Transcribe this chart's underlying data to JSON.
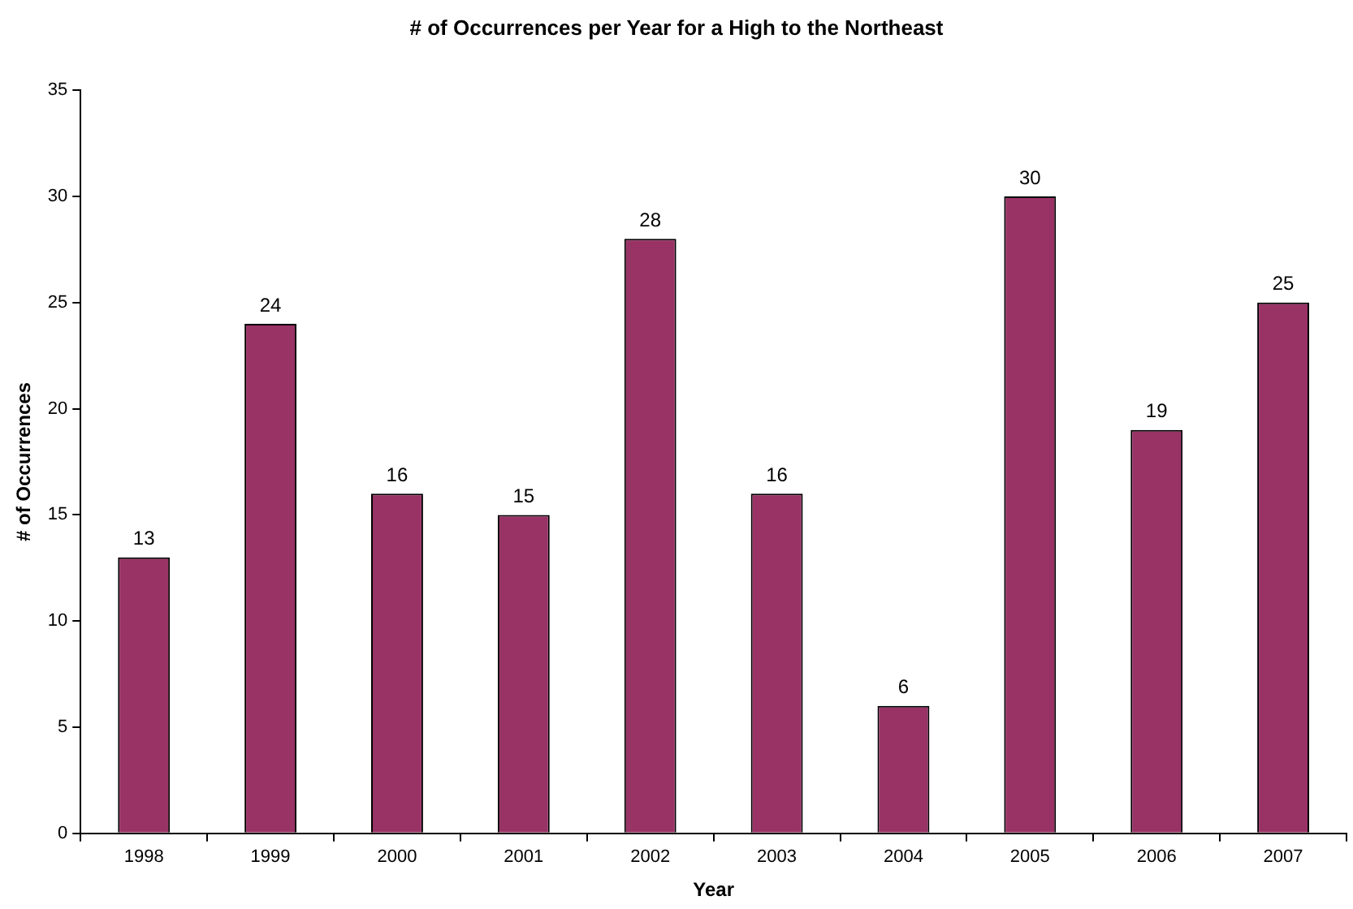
{
  "chart_data": {
    "type": "bar",
    "title": "# of Occurrences per Year for a High to the Northeast",
    "xlabel": "Year",
    "ylabel": "# of Occurrences",
    "categories": [
      "1998",
      "1999",
      "2000",
      "2001",
      "2002",
      "2003",
      "2004",
      "2005",
      "2006",
      "2007"
    ],
    "values": [
      13,
      24,
      16,
      15,
      28,
      16,
      6,
      30,
      19,
      25
    ],
    "color": "#993366",
    "ylim": [
      0,
      35
    ],
    "yticks": [
      0,
      5,
      10,
      15,
      20,
      25,
      30,
      35
    ],
    "grid": false,
    "legend": false,
    "data_labels": true
  }
}
